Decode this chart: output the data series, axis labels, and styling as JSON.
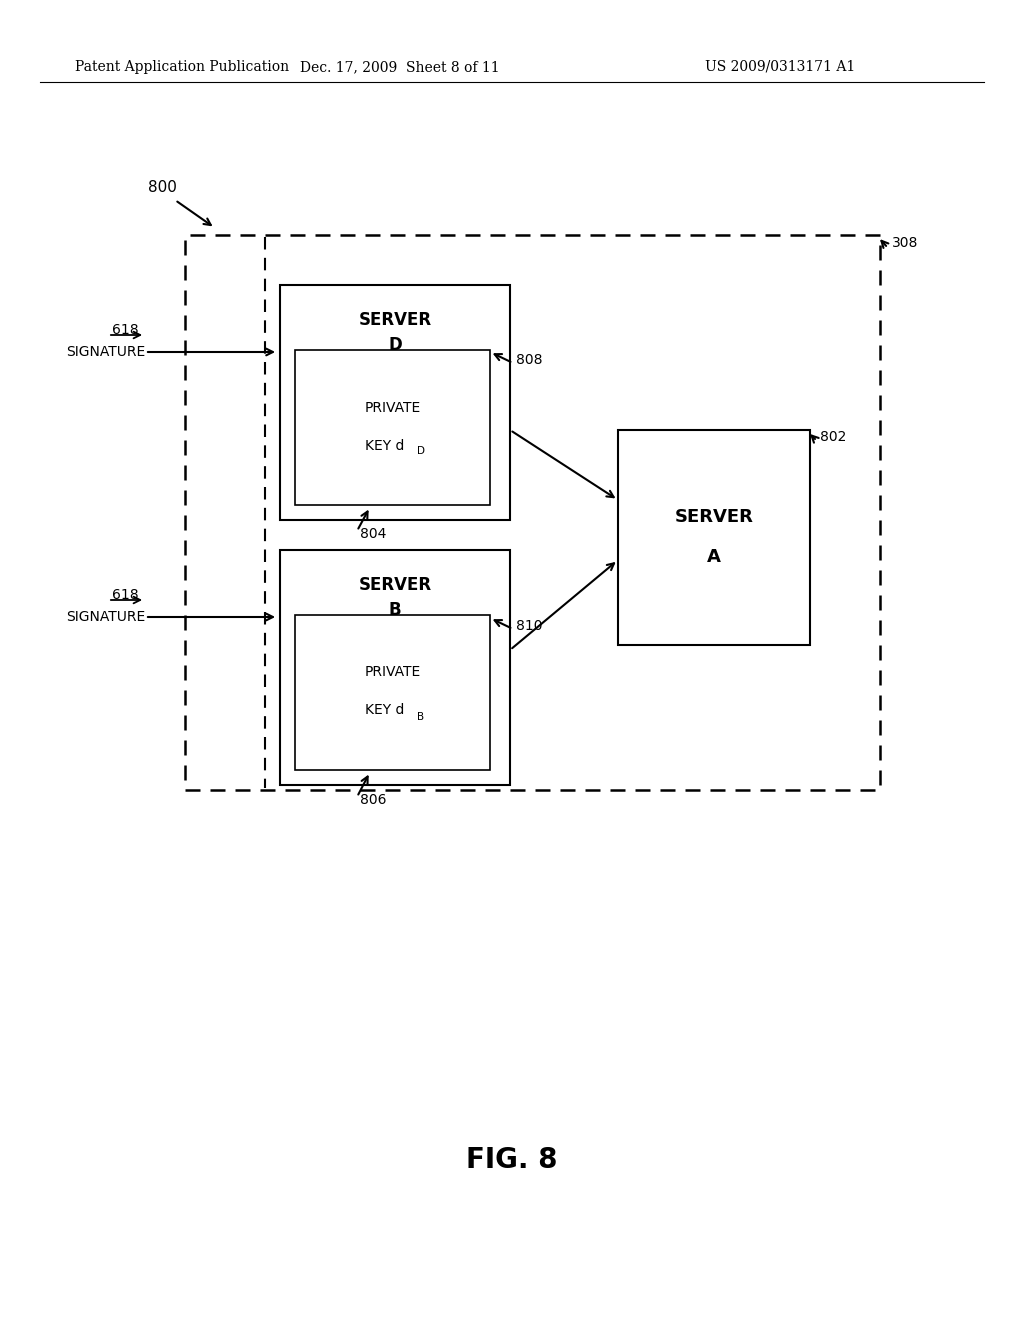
{
  "bg_color": "#ffffff",
  "title_left": "Patent Application Publication",
  "title_mid": "Dec. 17, 2009  Sheet 8 of 11",
  "title_right": "US 2009/0313171 A1",
  "fig_label": "FIG. 8",
  "label_800": "800",
  "label_308": "308",
  "label_618_top": "618",
  "label_618_bot": "618",
  "label_804": "804",
  "label_806": "806",
  "label_808": "808",
  "label_810": "810",
  "label_802": "802",
  "sig_top": "SIGNATURE",
  "sig_bot": "SIGNATURE"
}
